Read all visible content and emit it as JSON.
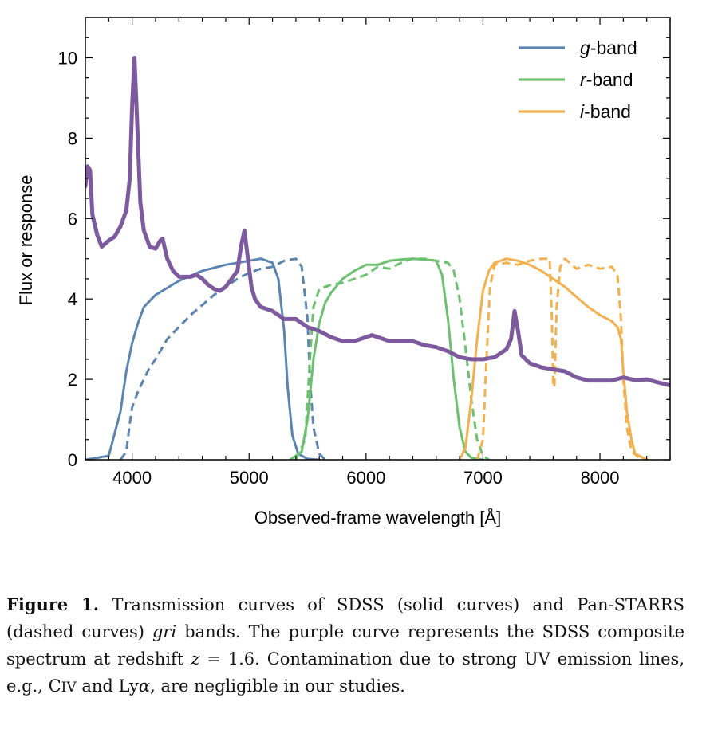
{
  "chart_data": {
    "type": "line",
    "xlabel": "Observed-frame wavelength [Å]",
    "ylabel": "Flux or response",
    "xlim": [
      3600,
      8600
    ],
    "ylim": [
      0,
      11
    ],
    "xticks": [
      4000,
      5000,
      6000,
      7000,
      8000
    ],
    "yticks": [
      0,
      2,
      4,
      6,
      8,
      10
    ],
    "legend_position": "top-right",
    "legend": [
      {
        "label_italic": "g",
        "label_rest": "-band",
        "color": "#5b84b1"
      },
      {
        "label_italic": "r",
        "label_rest": "-band",
        "color": "#6cc070"
      },
      {
        "label_italic": "i",
        "label_rest": "-band",
        "color": "#f2b04f"
      }
    ],
    "series": [
      {
        "band": "g",
        "survey": "SDSS",
        "style": "solid",
        "color": "#5b84b1",
        "points": [
          [
            3600,
            0
          ],
          [
            3700,
            0.05
          ],
          [
            3800,
            0.1
          ],
          [
            3900,
            1.2
          ],
          [
            3950,
            2.2
          ],
          [
            4000,
            2.9
          ],
          [
            4050,
            3.4
          ],
          [
            4100,
            3.8
          ],
          [
            4200,
            4.1
          ],
          [
            4400,
            4.45
          ],
          [
            4600,
            4.7
          ],
          [
            4800,
            4.85
          ],
          [
            5000,
            4.95
          ],
          [
            5100,
            5.0
          ],
          [
            5200,
            4.9
          ],
          [
            5250,
            4.5
          ],
          [
            5300,
            3.2
          ],
          [
            5330,
            1.8
          ],
          [
            5370,
            0.6
          ],
          [
            5420,
            0.15
          ],
          [
            5500,
            0.02
          ],
          [
            5600,
            0
          ]
        ]
      },
      {
        "band": "g",
        "survey": "Pan-STARRS",
        "style": "dashed",
        "color": "#5b84b1",
        "points": [
          [
            3900,
            0
          ],
          [
            3950,
            0.2
          ],
          [
            3980,
            0.9
          ],
          [
            4000,
            1.3
          ],
          [
            4050,
            1.7
          ],
          [
            4100,
            2.0
          ],
          [
            4150,
            2.3
          ],
          [
            4200,
            2.5
          ],
          [
            4300,
            3.0
          ],
          [
            4400,
            3.3
          ],
          [
            4500,
            3.6
          ],
          [
            4600,
            3.85
          ],
          [
            4700,
            4.1
          ],
          [
            4800,
            4.3
          ],
          [
            4900,
            4.5
          ],
          [
            5000,
            4.65
          ],
          [
            5100,
            4.75
          ],
          [
            5200,
            4.8
          ],
          [
            5300,
            4.95
          ],
          [
            5400,
            5.0
          ],
          [
            5450,
            4.8
          ],
          [
            5500,
            3.5
          ],
          [
            5520,
            2.0
          ],
          [
            5550,
            0.8
          ],
          [
            5600,
            0.15
          ],
          [
            5650,
            0
          ]
        ]
      },
      {
        "band": "r",
        "survey": "SDSS",
        "style": "solid",
        "color": "#6cc070",
        "points": [
          [
            5350,
            0
          ],
          [
            5450,
            0.2
          ],
          [
            5500,
            1.0
          ],
          [
            5550,
            2.5
          ],
          [
            5600,
            3.4
          ],
          [
            5650,
            3.9
          ],
          [
            5700,
            4.15
          ],
          [
            5800,
            4.5
          ],
          [
            5900,
            4.7
          ],
          [
            6000,
            4.85
          ],
          [
            6100,
            4.85
          ],
          [
            6200,
            4.95
          ],
          [
            6300,
            4.98
          ],
          [
            6400,
            5.0
          ],
          [
            6500,
            4.98
          ],
          [
            6600,
            4.95
          ],
          [
            6650,
            4.6
          ],
          [
            6700,
            3.5
          ],
          [
            6750,
            2.0
          ],
          [
            6800,
            0.8
          ],
          [
            6850,
            0.2
          ],
          [
            6900,
            0.05
          ],
          [
            7000,
            0
          ]
        ]
      },
      {
        "band": "r",
        "survey": "Pan-STARRS",
        "style": "dashed",
        "color": "#6cc070",
        "points": [
          [
            5400,
            0
          ],
          [
            5480,
            0.5
          ],
          [
            5520,
            2.5
          ],
          [
            5550,
            3.8
          ],
          [
            5600,
            4.25
          ],
          [
            5700,
            4.35
          ],
          [
            5800,
            4.4
          ],
          [
            5900,
            4.5
          ],
          [
            6000,
            4.6
          ],
          [
            6100,
            4.8
          ],
          [
            6200,
            4.75
          ],
          [
            6300,
            4.9
          ],
          [
            6400,
            5.0
          ],
          [
            6500,
            5.0
          ],
          [
            6600,
            4.95
          ],
          [
            6700,
            4.9
          ],
          [
            6750,
            4.7
          ],
          [
            6800,
            4.0
          ],
          [
            6850,
            2.8
          ],
          [
            6900,
            1.5
          ],
          [
            6950,
            0.5
          ],
          [
            7000,
            0.1
          ],
          [
            7050,
            0
          ]
        ]
      },
      {
        "band": "i",
        "survey": "SDSS",
        "style": "solid",
        "color": "#f2b04f",
        "points": [
          [
            6800,
            0
          ],
          [
            6850,
            0.3
          ],
          [
            6900,
            1.5
          ],
          [
            6950,
            3.0
          ],
          [
            7000,
            4.2
          ],
          [
            7050,
            4.7
          ],
          [
            7100,
            4.9
          ],
          [
            7200,
            5.0
          ],
          [
            7300,
            4.95
          ],
          [
            7400,
            4.85
          ],
          [
            7500,
            4.7
          ],
          [
            7600,
            4.5
          ],
          [
            7700,
            4.3
          ],
          [
            7800,
            4.05
          ],
          [
            7900,
            3.8
          ],
          [
            8000,
            3.6
          ],
          [
            8100,
            3.45
          ],
          [
            8150,
            3.3
          ],
          [
            8180,
            3.0
          ],
          [
            8200,
            2.2
          ],
          [
            8230,
            1.2
          ],
          [
            8270,
            0.5
          ],
          [
            8300,
            0.15
          ],
          [
            8400,
            0
          ]
        ]
      },
      {
        "band": "i",
        "survey": "Pan-STARRS",
        "style": "dashed",
        "color": "#f2b04f",
        "points": [
          [
            6950,
            0
          ],
          [
            7000,
            0.5
          ],
          [
            7030,
            2.5
          ],
          [
            7060,
            4.3
          ],
          [
            7100,
            4.85
          ],
          [
            7200,
            4.9
          ],
          [
            7300,
            4.85
          ],
          [
            7400,
            4.95
          ],
          [
            7500,
            5.0
          ],
          [
            7570,
            5.0
          ],
          [
            7590,
            3.5
          ],
          [
            7600,
            1.9
          ],
          [
            7610,
            1.8
          ],
          [
            7630,
            3.8
          ],
          [
            7660,
            4.8
          ],
          [
            7700,
            5.0
          ],
          [
            7800,
            4.75
          ],
          [
            7900,
            4.85
          ],
          [
            8000,
            4.75
          ],
          [
            8100,
            4.8
          ],
          [
            8150,
            4.6
          ],
          [
            8180,
            3.5
          ],
          [
            8200,
            2.0
          ],
          [
            8230,
            0.8
          ],
          [
            8270,
            0.2
          ],
          [
            8350,
            0.02
          ],
          [
            8400,
            0
          ]
        ]
      },
      {
        "band": "composite",
        "survey": "SDSS composite spectrum",
        "style": "thick",
        "color": "#7d5a9e",
        "points": [
          [
            3600,
            6.8
          ],
          [
            3620,
            7.3
          ],
          [
            3640,
            7.2
          ],
          [
            3660,
            6.1
          ],
          [
            3700,
            5.6
          ],
          [
            3740,
            5.3
          ],
          [
            3800,
            5.45
          ],
          [
            3850,
            5.55
          ],
          [
            3900,
            5.8
          ],
          [
            3950,
            6.2
          ],
          [
            3980,
            7.0
          ],
          [
            4000,
            8.8
          ],
          [
            4020,
            10.0
          ],
          [
            4040,
            8.6
          ],
          [
            4070,
            6.4
          ],
          [
            4100,
            5.7
          ],
          [
            4150,
            5.3
          ],
          [
            4200,
            5.25
          ],
          [
            4240,
            5.45
          ],
          [
            4260,
            5.5
          ],
          [
            4300,
            5.0
          ],
          [
            4350,
            4.7
          ],
          [
            4400,
            4.55
          ],
          [
            4500,
            4.55
          ],
          [
            4550,
            4.6
          ],
          [
            4600,
            4.5
          ],
          [
            4650,
            4.35
          ],
          [
            4700,
            4.25
          ],
          [
            4750,
            4.2
          ],
          [
            4800,
            4.3
          ],
          [
            4850,
            4.5
          ],
          [
            4900,
            4.7
          ],
          [
            4930,
            5.3
          ],
          [
            4960,
            5.7
          ],
          [
            4990,
            5.0
          ],
          [
            5020,
            4.3
          ],
          [
            5050,
            4.0
          ],
          [
            5100,
            3.8
          ],
          [
            5200,
            3.7
          ],
          [
            5300,
            3.5
          ],
          [
            5400,
            3.5
          ],
          [
            5500,
            3.3
          ],
          [
            5600,
            3.2
          ],
          [
            5700,
            3.05
          ],
          [
            5800,
            2.95
          ],
          [
            5900,
            2.95
          ],
          [
            6000,
            3.05
          ],
          [
            6050,
            3.1
          ],
          [
            6100,
            3.05
          ],
          [
            6200,
            2.95
          ],
          [
            6300,
            2.95
          ],
          [
            6400,
            2.95
          ],
          [
            6500,
            2.85
          ],
          [
            6600,
            2.8
          ],
          [
            6700,
            2.7
          ],
          [
            6800,
            2.55
          ],
          [
            6900,
            2.5
          ],
          [
            7000,
            2.5
          ],
          [
            7100,
            2.55
          ],
          [
            7200,
            2.75
          ],
          [
            7240,
            3.0
          ],
          [
            7270,
            3.7
          ],
          [
            7300,
            3.2
          ],
          [
            7330,
            2.6
          ],
          [
            7400,
            2.4
          ],
          [
            7500,
            2.3
          ],
          [
            7600,
            2.25
          ],
          [
            7700,
            2.2
          ],
          [
            7800,
            2.05
          ],
          [
            7900,
            1.97
          ],
          [
            8000,
            1.97
          ],
          [
            8100,
            1.97
          ],
          [
            8200,
            2.05
          ],
          [
            8300,
            1.98
          ],
          [
            8400,
            2.0
          ],
          [
            8500,
            1.92
          ],
          [
            8600,
            1.85
          ]
        ]
      }
    ]
  },
  "caption": {
    "label": "Figure 1.",
    "text_1": " Transmission curves of SDSS (solid curves) and Pan-STARRS (dashed curves) ",
    "gri": "gri",
    "text_2": " bands. The purple curve represents the SDSS composite spectrum at redshift ",
    "z": "z",
    "text_3": " = 1.6. Contamination due to strong UV emission lines, e.g., C",
    "civ": "IV",
    "text_4": " and Ly",
    "alpha": "α",
    "text_5": ", are negligible in our studies."
  }
}
